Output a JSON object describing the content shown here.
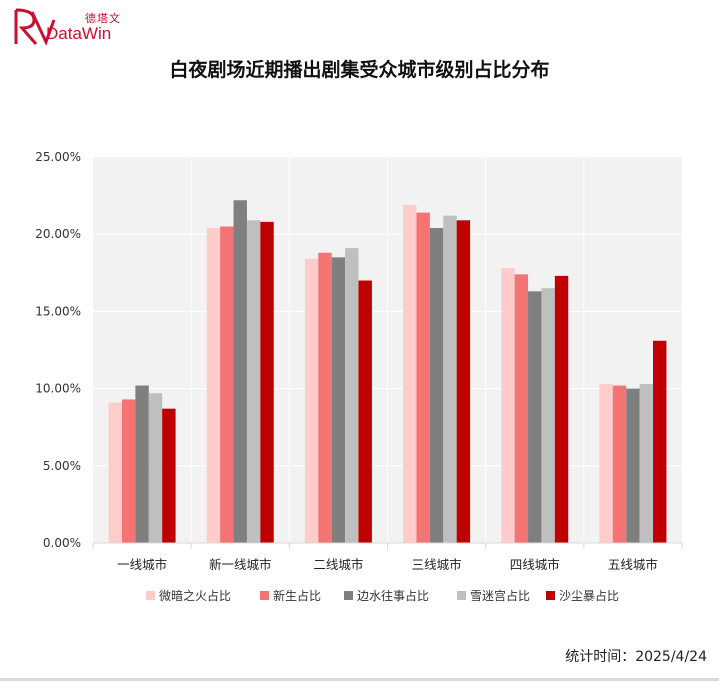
{
  "brand": {
    "name_cn": "德塔文",
    "name_en": "DataWin",
    "color": "#c8102e"
  },
  "footer": {
    "label": "统计时间：",
    "date": "2025/4/24"
  },
  "chart_data": {
    "type": "bar",
    "title": "白夜剧场近期播出剧集受众城市级别占比分布",
    "categories": [
      "一线城市",
      "新一线城市",
      "二线城市",
      "三线城市",
      "四线城市",
      "五线城市"
    ],
    "series": [
      {
        "name": "微暗之火占比",
        "color": "#ffcccc",
        "values": [
          9.1,
          20.4,
          18.4,
          21.9,
          17.8,
          10.3
        ]
      },
      {
        "name": "新生占比",
        "color": "#f47474",
        "values": [
          9.3,
          20.5,
          18.8,
          21.4,
          17.4,
          10.2
        ]
      },
      {
        "name": "边水往事占比",
        "color": "#7f7f7f",
        "values": [
          10.2,
          22.2,
          18.5,
          20.4,
          16.3,
          10.0
        ]
      },
      {
        "name": "雪迷宫占比",
        "color": "#bfbfbf",
        "values": [
          9.7,
          20.9,
          19.1,
          21.2,
          16.5,
          10.3
        ]
      },
      {
        "name": "沙尘暴占比",
        "color": "#c00000",
        "values": [
          8.7,
          20.8,
          17.0,
          20.9,
          17.3,
          13.1
        ]
      }
    ],
    "ylim": [
      0,
      25
    ],
    "yticks": [
      "0.00%",
      "5.00%",
      "10.00%",
      "15.00%",
      "20.00%",
      "25.00%"
    ],
    "ytick_values": [
      0,
      5,
      10,
      15,
      20,
      25
    ],
    "grid": true,
    "plot_background": "#f2f2f2",
    "legend_position": "bottom"
  }
}
